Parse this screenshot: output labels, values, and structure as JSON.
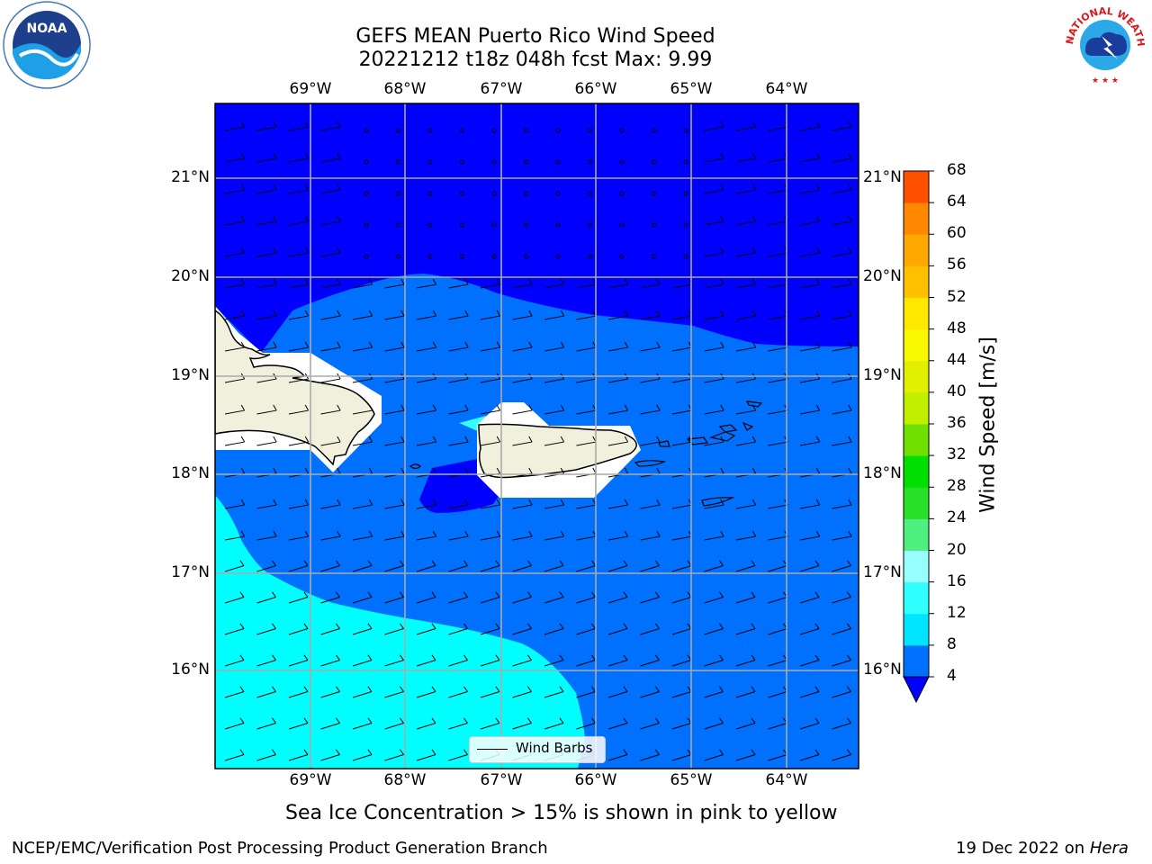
{
  "title": {
    "line1": "GEFS MEAN Puerto Rico Wind Speed",
    "line2": "20221212 t18z 048h fcst   Max: 9.99"
  },
  "map": {
    "lon_labels": [
      "69°W",
      "68°W",
      "67°W",
      "66°W",
      "65°W",
      "64°W"
    ],
    "lat_labels": [
      "21°N",
      "20°N",
      "19°N",
      "18°N",
      "17°N",
      "16°N"
    ],
    "legend_label": "Wind Barbs"
  },
  "colorbar": {
    "label": "Wind Speed [m/s]",
    "ticks": [
      "4",
      "8",
      "12",
      "16",
      "20",
      "24",
      "28",
      "32",
      "36",
      "40",
      "44",
      "48",
      "52",
      "56",
      "60",
      "64",
      "68"
    ],
    "colors": [
      "#0070ff",
      "#00e5ff",
      "#30ffff",
      "#98ffff",
      "#50f080",
      "#28e028",
      "#00e000",
      "#70e000",
      "#c0f000",
      "#e0f000",
      "#f8f800",
      "#ffe800",
      "#ffc000",
      "#ffa800",
      "#ff8800",
      "#ff5000",
      "#ff2800",
      "#ff0000"
    ],
    "under_color": "#0000ff"
  },
  "colors": {
    "deep_blue": "#0000ff",
    "mid_blue": "#0070ff",
    "cyan": "#00ffff",
    "land": "#f0f0dc"
  },
  "logos": {
    "noaa": "NOAA",
    "nws_text": "NATIONAL WEATHER SERVICE"
  },
  "caption": "Sea Ice Concentration > 15% is shown in pink to yellow",
  "footer": {
    "left": "NCEP/EMC/Verification Post Processing Product Generation Branch",
    "right_prefix": "19 Dec 2022 on ",
    "right_host": "Hera"
  }
}
